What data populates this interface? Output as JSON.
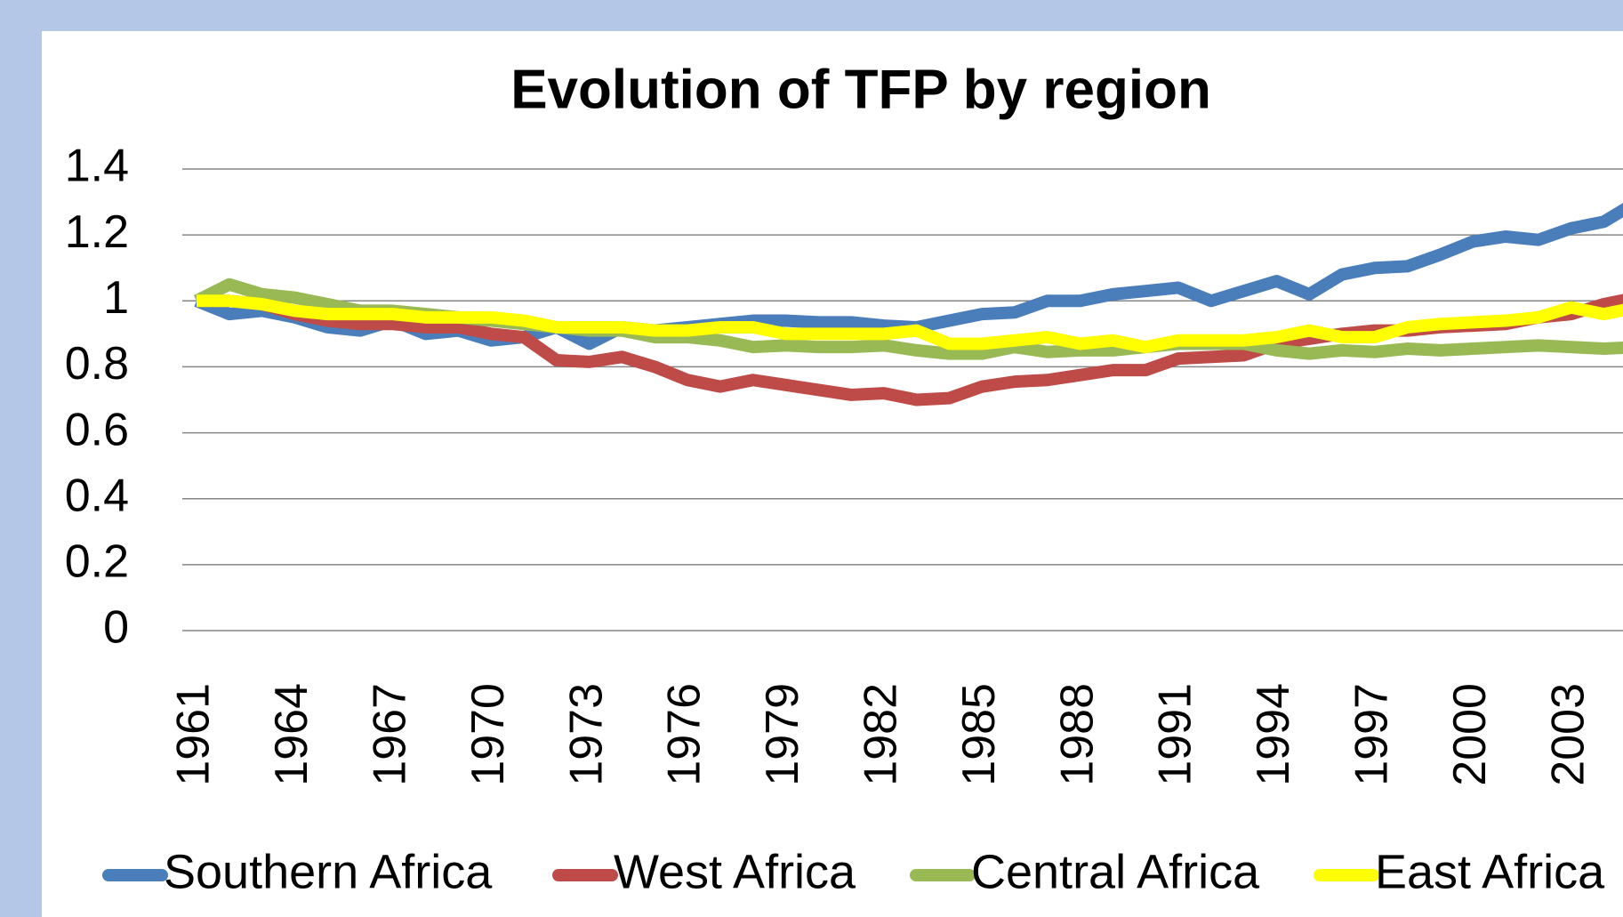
{
  "chart_data": {
    "type": "line",
    "title": "Evolution of TFP by region",
    "categories": [
      "1961",
      "1962",
      "1963",
      "1964",
      "1965",
      "1966",
      "1967",
      "1968",
      "1969",
      "1970",
      "1971",
      "1972",
      "1973",
      "1974",
      "1975",
      "1976",
      "1977",
      "1978",
      "1979",
      "1980",
      "1981",
      "1982",
      "1983",
      "1984",
      "1985",
      "1986",
      "1987",
      "1988",
      "1989",
      "1990",
      "1991",
      "1992",
      "1993",
      "1994",
      "1995",
      "1996",
      "1997",
      "1998",
      "1999",
      "2000",
      "2001",
      "2002",
      "2003",
      "2004",
      "2005"
    ],
    "label_interval": 3,
    "series": [
      {
        "name": "Southern Africa",
        "color": "#4a7ebb",
        "values": [
          1.0,
          0.96,
          0.97,
          0.95,
          0.92,
          0.91,
          0.94,
          0.9,
          0.91,
          0.88,
          0.89,
          0.92,
          0.87,
          0.92,
          0.91,
          0.92,
          0.93,
          0.94,
          0.94,
          0.935,
          0.935,
          0.925,
          0.92,
          0.94,
          0.96,
          0.965,
          1.0,
          1.0,
          1.02,
          1.03,
          1.04,
          1.0,
          1.03,
          1.06,
          1.02,
          1.08,
          1.1,
          1.105,
          1.14,
          1.18,
          1.195,
          1.185,
          1.22,
          1.24,
          1.3
        ]
      },
      {
        "name": "West Africa",
        "color": "#be4b48",
        "values": [
          1.0,
          1.0,
          0.99,
          0.96,
          0.94,
          0.93,
          0.93,
          0.92,
          0.92,
          0.9,
          0.89,
          0.82,
          0.815,
          0.83,
          0.8,
          0.76,
          0.74,
          0.76,
          0.745,
          0.73,
          0.715,
          0.72,
          0.7,
          0.705,
          0.74,
          0.755,
          0.76,
          0.775,
          0.79,
          0.79,
          0.825,
          0.83,
          0.835,
          0.87,
          0.885,
          0.9,
          0.91,
          0.91,
          0.92,
          0.925,
          0.93,
          0.95,
          0.96,
          0.99,
          1.01
        ]
      },
      {
        "name": "Central Africa",
        "color": "#98b954",
        "values": [
          1.0,
          1.05,
          1.02,
          1.01,
          0.99,
          0.97,
          0.97,
          0.96,
          0.95,
          0.94,
          0.93,
          0.92,
          0.91,
          0.91,
          0.89,
          0.89,
          0.88,
          0.86,
          0.865,
          0.86,
          0.86,
          0.865,
          0.85,
          0.84,
          0.84,
          0.86,
          0.845,
          0.85,
          0.85,
          0.86,
          0.87,
          0.87,
          0.87,
          0.85,
          0.84,
          0.85,
          0.845,
          0.855,
          0.85,
          0.855,
          0.86,
          0.865,
          0.86,
          0.855,
          0.86
        ]
      },
      {
        "name": "East Africa",
        "color": "#ffff00",
        "values": [
          1.0,
          1.0,
          0.99,
          0.97,
          0.96,
          0.96,
          0.96,
          0.95,
          0.95,
          0.95,
          0.94,
          0.92,
          0.92,
          0.92,
          0.91,
          0.91,
          0.92,
          0.92,
          0.9,
          0.9,
          0.9,
          0.9,
          0.91,
          0.87,
          0.87,
          0.88,
          0.89,
          0.87,
          0.88,
          0.86,
          0.88,
          0.88,
          0.88,
          0.89,
          0.91,
          0.89,
          0.89,
          0.92,
          0.93,
          0.935,
          0.94,
          0.95,
          0.98,
          0.96,
          0.98
        ]
      }
    ],
    "ylim": [
      0,
      1.4
    ],
    "yticks": [
      0,
      0.2,
      0.4,
      0.6,
      0.8,
      1,
      1.2,
      1.4
    ],
    "grid": true,
    "legend": "bottom"
  }
}
